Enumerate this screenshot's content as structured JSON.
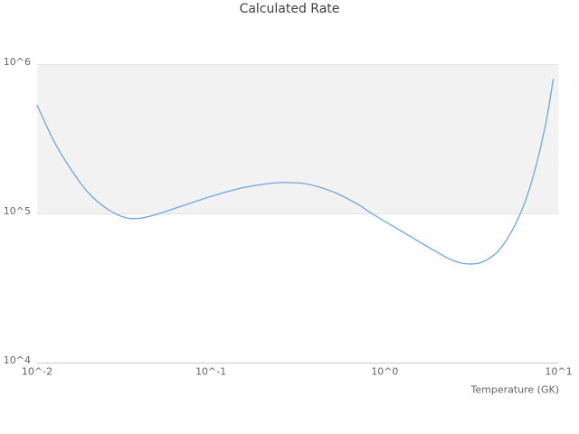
{
  "title": "Calculated Rate",
  "colors": {
    "background": "#ffffff",
    "band_fill": "#f2f2f2",
    "gridline": "#e3e3e3",
    "axis_line": "#cccccc",
    "series_line": "#6ea7e4",
    "title_text": "#3f3f3f",
    "axis_text": "#666666"
  },
  "chart_data": {
    "type": "line",
    "title": "Calculated Rate",
    "xlabel": "Temperature (GK)",
    "ylabel": "",
    "x_scale": "log",
    "y_scale": "log",
    "xlim": [
      0.01,
      10
    ],
    "ylim": [
      10000,
      1000000
    ],
    "grid": "horizontal",
    "legend": "none",
    "x_ticks": [
      {
        "value": 0.01,
        "label": "10^-2"
      },
      {
        "value": 0.1,
        "label": "10^-1"
      },
      {
        "value": 1,
        "label": "10^0"
      },
      {
        "value": 10,
        "label": "10^1"
      }
    ],
    "y_ticks": [
      {
        "value": 1000000,
        "label": "10^6"
      },
      {
        "value": 100000,
        "label": "10^5"
      },
      {
        "value": 10000,
        "label": "10^4"
      }
    ],
    "band": {
      "y_from": 100000,
      "y_to": 1000000
    },
    "series": [
      {
        "name": "Calculated Rate",
        "x": [
          0.01,
          0.0126,
          0.016,
          0.02,
          0.026,
          0.034,
          0.045,
          0.065,
          0.1,
          0.15,
          0.21,
          0.26,
          0.35,
          0.5,
          0.7,
          0.84,
          1.2,
          1.8,
          2.4,
          2.9,
          3.6,
          4.5,
          5.5,
          6.5,
          7.5,
          8.5,
          9.3
        ],
        "y": [
          530000,
          300000,
          190000,
          135000,
          105000,
          92500,
          96000,
          110000,
          130000,
          148000,
          158000,
          161000,
          158000,
          140000,
          115000,
          100000,
          78000,
          59000,
          49000,
          46000,
          47000,
          56000,
          80000,
          125000,
          220000,
          420000,
          790000
        ]
      }
    ]
  }
}
